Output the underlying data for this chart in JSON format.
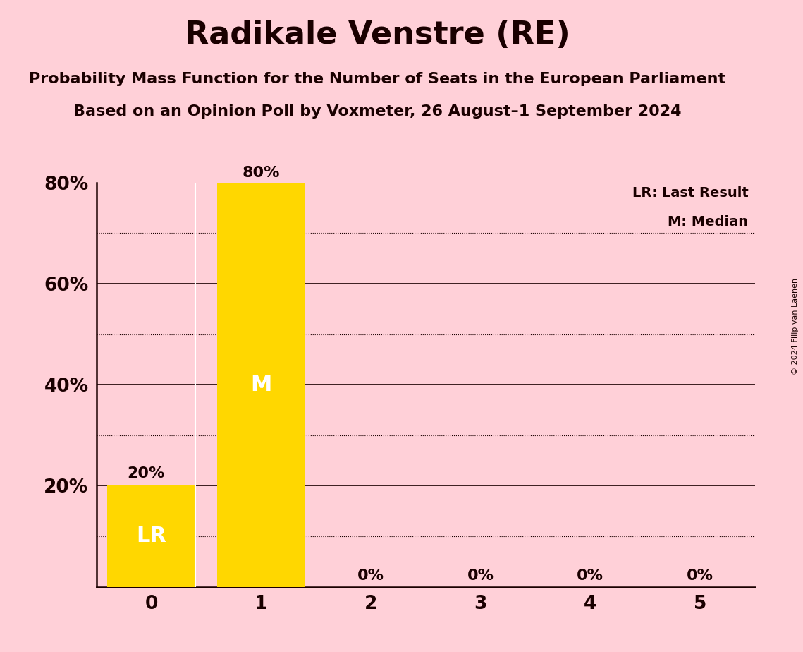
{
  "title": "Radikale Venstre (RE)",
  "subtitle1": "Probability Mass Function for the Number of Seats in the European Parliament",
  "subtitle2": "Based on an Opinion Poll by Voxmeter, 26 August–1 September 2024",
  "copyright": "© 2024 Filip van Laenen",
  "categories": [
    0,
    1,
    2,
    3,
    4,
    5
  ],
  "values": [
    0.2,
    0.8,
    0.0,
    0.0,
    0.0,
    0.0
  ],
  "bar_color": "#FFD700",
  "background_color": "#FFD0D8",
  "text_color": "#1a0000",
  "label_color_on_bar": "#FFFFFF",
  "ylim": [
    0,
    0.8
  ],
  "yticks": [
    0.2,
    0.4,
    0.6,
    0.8
  ],
  "ytick_labels": [
    "20%",
    "40%",
    "60%",
    "80%"
  ],
  "bar_value_labels": [
    "20%",
    "80%",
    "0%",
    "0%",
    "0%",
    "0%"
  ],
  "lr_bar_index": 0,
  "median_bar_index": 1,
  "lr_label": "LR",
  "median_label": "M",
  "legend_lr": "LR: Last Result",
  "legend_m": "M: Median",
  "lr_line_color": "#FFFFFF",
  "grid_major_color": "#1a0000",
  "grid_minor_color": "#1a0000",
  "bar_width": 0.8,
  "major_gridlines": [
    0.2,
    0.4,
    0.6,
    0.8
  ],
  "minor_gridlines": [
    0.1,
    0.3,
    0.5,
    0.7
  ]
}
